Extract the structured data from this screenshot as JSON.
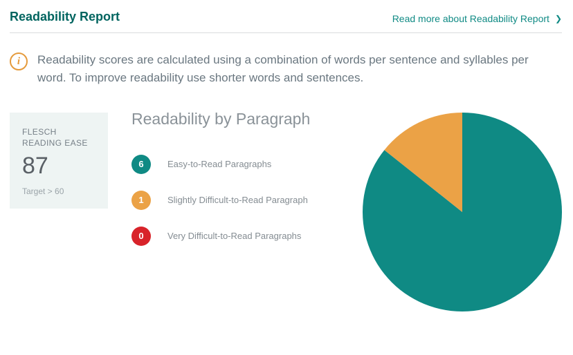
{
  "colors": {
    "title": "#00645f",
    "link": "#0f8a84",
    "info_border": "#e59a3b",
    "card_bg": "#eef4f3",
    "divider": "#d9dcde",
    "text_muted": "#8a9298"
  },
  "header": {
    "title": "Readability Report",
    "readmore_label": "Read more about Readability Report"
  },
  "info": {
    "text": "Readability scores are calculated using a combination of words per sentence and syllables per word. To improve readability use shorter words and sentences."
  },
  "score_card": {
    "label": "FLESCH READING EASE",
    "value": "87",
    "target": "Target > 60"
  },
  "breakdown": {
    "heading": "Readability by Paragraph",
    "items": [
      {
        "count": "6",
        "label": "Easy-to-Read Paragraphs",
        "color": "#0f8a84"
      },
      {
        "count": "1",
        "label": "Slightly Difficult-to-Read Paragraph",
        "color": "#eba246"
      },
      {
        "count": "0",
        "label": "Very Difficult-to-Read Paragraphs",
        "color": "#d8232a"
      }
    ]
  },
  "pie": {
    "size": 288,
    "slices": [
      {
        "value": 6,
        "color": "#0f8a84"
      },
      {
        "value": 1,
        "color": "#eba246"
      },
      {
        "value": 0,
        "color": "#d8232a"
      }
    ],
    "start_angle_deg": -90
  }
}
